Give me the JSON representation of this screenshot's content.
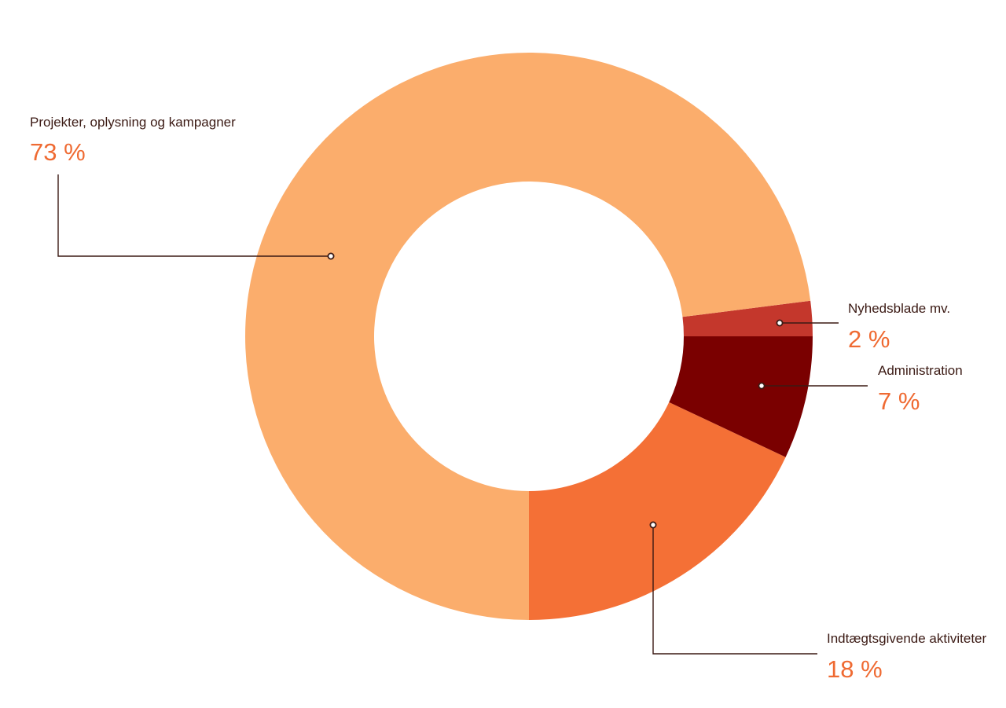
{
  "chart_data": {
    "type": "pie",
    "donut": true,
    "slices": [
      {
        "label": "Projekter, oplysning og kampagner",
        "value": 73,
        "value_label": "73 %",
        "color": "#fbad6c"
      },
      {
        "label": "Nyhedsblade mv.",
        "value": 2,
        "value_label": "2 %",
        "color": "#c4372c"
      },
      {
        "label": "Administration",
        "value": 7,
        "value_label": "7 %",
        "color": "#7a0000"
      },
      {
        "label": "Indtægtsgivende aktiviteter",
        "value": 18,
        "value_label": "18 %",
        "color": "#f47036"
      }
    ],
    "label_color": "#3b1a14",
    "value_color": "#ef6a32"
  }
}
